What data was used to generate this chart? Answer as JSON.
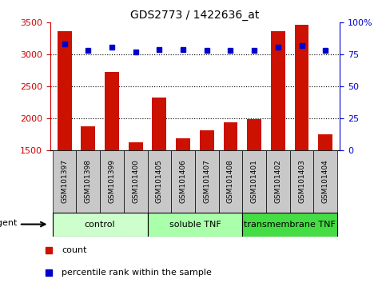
{
  "title": "GDS2773 / 1422636_at",
  "samples": [
    "GSM101397",
    "GSM101398",
    "GSM101399",
    "GSM101400",
    "GSM101405",
    "GSM101406",
    "GSM101407",
    "GSM101408",
    "GSM101401",
    "GSM101402",
    "GSM101403",
    "GSM101404"
  ],
  "counts": [
    3360,
    1870,
    2720,
    1620,
    2330,
    1680,
    1810,
    1940,
    1980,
    3360,
    3470,
    1750
  ],
  "percentile": [
    83,
    78,
    81,
    77,
    79,
    79,
    78,
    78,
    78,
    81,
    82,
    78
  ],
  "ylim_left": [
    1500,
    3500
  ],
  "ylim_right": [
    0,
    100
  ],
  "yticks_left": [
    1500,
    2000,
    2500,
    3000,
    3500
  ],
  "yticks_right": [
    0,
    25,
    50,
    75,
    100
  ],
  "grid_yticks": [
    2000,
    2500,
    3000
  ],
  "bar_color": "#cc1100",
  "dot_color": "#0000cc",
  "label_bg_color": "#c8c8c8",
  "groups": [
    {
      "label": "control",
      "start": 0,
      "end": 4,
      "color": "#ccffcc"
    },
    {
      "label": "soluble TNF",
      "start": 4,
      "end": 8,
      "color": "#aaffaa"
    },
    {
      "label": "transmembrane TNF",
      "start": 8,
      "end": 12,
      "color": "#44dd44"
    }
  ],
  "legend_items": [
    {
      "label": "count",
      "color": "#cc1100"
    },
    {
      "label": "percentile rank within the sample",
      "color": "#0000cc"
    }
  ],
  "agent_label": "agent",
  "left_axis_color": "#cc0000",
  "right_axis_color": "#0000cc"
}
